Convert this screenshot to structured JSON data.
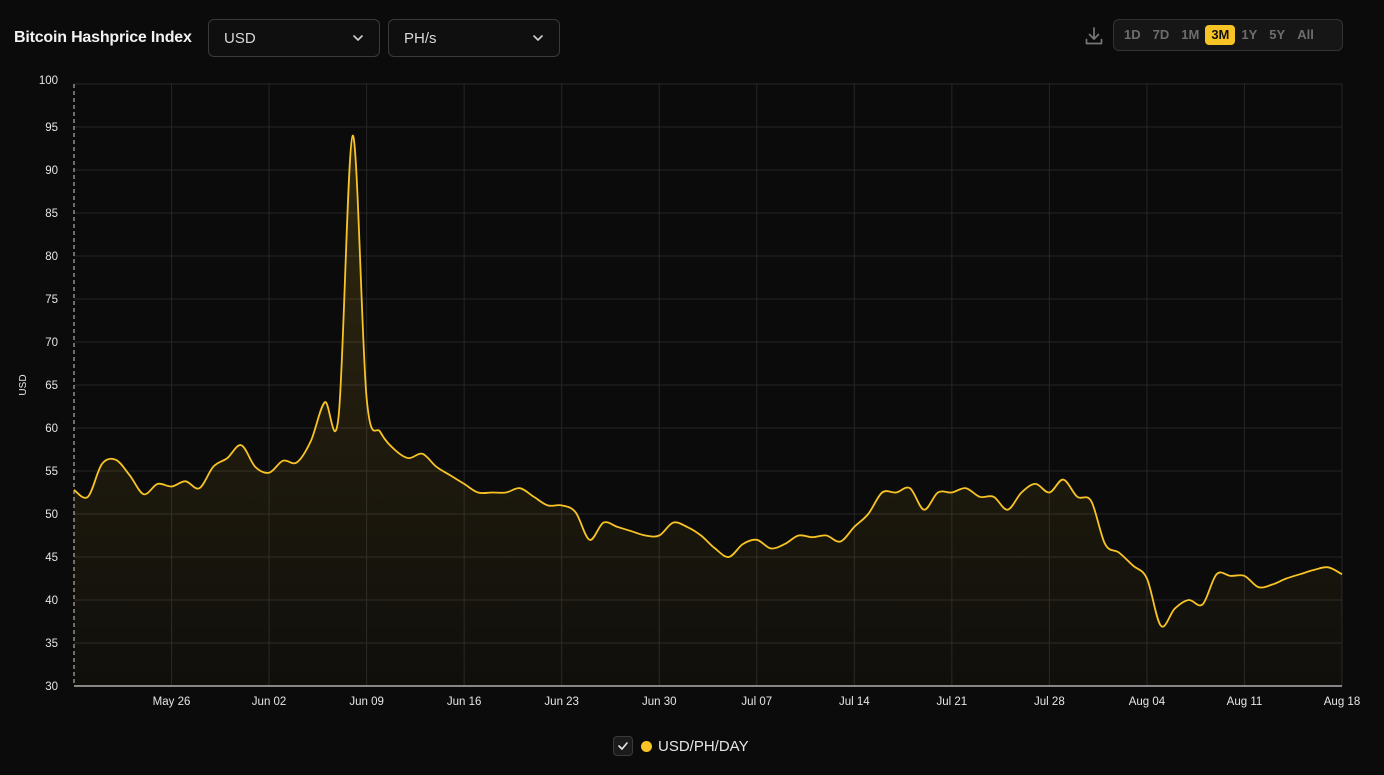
{
  "header": {
    "title": "Bitcoin Hashprice Index",
    "currency_select": {
      "value": "USD"
    },
    "unit_select": {
      "value": "PH/s"
    },
    "download_icon": "download-icon",
    "ranges": [
      {
        "label": "1D",
        "active": false
      },
      {
        "label": "7D",
        "active": false
      },
      {
        "label": "1M",
        "active": false
      },
      {
        "label": "3M",
        "active": true
      },
      {
        "label": "1Y",
        "active": false
      },
      {
        "label": "5Y",
        "active": false
      },
      {
        "label": "All",
        "active": false
      }
    ]
  },
  "legend": {
    "label": "USD/PH/DAY",
    "checked": true,
    "color": "#f7c325"
  },
  "colors": {
    "accent": "#f7c325",
    "background": "#0b0b0b",
    "grid": "#2a2a2a"
  },
  "chart_data": {
    "type": "area",
    "title": "Bitcoin Hashprice Index",
    "ylabel": "USD",
    "xlabel": "",
    "ylim": [
      30,
      100
    ],
    "yticks": [
      30,
      35,
      40,
      45,
      50,
      55,
      60,
      65,
      70,
      75,
      80,
      85,
      90,
      95,
      100
    ],
    "x_ticks": [
      "May 26",
      "Jun 02",
      "Jun 09",
      "Jun 16",
      "Jun 23",
      "Jun 30",
      "Jul 07",
      "Jul 14",
      "Jul 21",
      "Jul 28",
      "Aug 04",
      "Aug 11",
      "Aug 18"
    ],
    "x_domain": [
      "May 19",
      "Aug 18"
    ],
    "grid": true,
    "legend_position": "bottom-center",
    "series": [
      {
        "name": "USD/PH/DAY",
        "color": "#f7c325",
        "points": [
          [
            "May 19",
            52.8
          ],
          [
            "May 20",
            52.0
          ],
          [
            "May 21",
            55.8
          ],
          [
            "May 22",
            56.3
          ],
          [
            "May 23",
            54.5
          ],
          [
            "May 24",
            52.3
          ],
          [
            "May 25",
            53.5
          ],
          [
            "May 26",
            53.2
          ],
          [
            "May 27",
            53.8
          ],
          [
            "May 28",
            53.0
          ],
          [
            "May 29",
            55.5
          ],
          [
            "May 30",
            56.5
          ],
          [
            "May 31",
            58.0
          ],
          [
            "Jun 01",
            55.5
          ],
          [
            "Jun 02",
            54.8
          ],
          [
            "Jun 03",
            56.2
          ],
          [
            "Jun 04",
            56.0
          ],
          [
            "Jun 05",
            58.5
          ],
          [
            "Jun 06",
            63.0
          ],
          [
            "Jun 07",
            61.5
          ],
          [
            "Jun 08",
            94.0
          ],
          [
            "Jun 09",
            63.5
          ],
          [
            "Jun 10",
            59.5
          ],
          [
            "Jun 11",
            57.5
          ],
          [
            "Jun 12",
            56.5
          ],
          [
            "Jun 13",
            57.0
          ],
          [
            "Jun 14",
            55.5
          ],
          [
            "Jun 15",
            54.5
          ],
          [
            "Jun 16",
            53.5
          ],
          [
            "Jun 17",
            52.5
          ],
          [
            "Jun 18",
            52.5
          ],
          [
            "Jun 19",
            52.5
          ],
          [
            "Jun 20",
            53.0
          ],
          [
            "Jun 21",
            52.0
          ],
          [
            "Jun 22",
            51.0
          ],
          [
            "Jun 23",
            51.0
          ],
          [
            "Jun 24",
            50.2
          ],
          [
            "Jun 25",
            47.0
          ],
          [
            "Jun 26",
            49.0
          ],
          [
            "Jun 27",
            48.5
          ],
          [
            "Jun 28",
            48.0
          ],
          [
            "Jun 29",
            47.5
          ],
          [
            "Jun 30",
            47.5
          ],
          [
            "Jul 01",
            49.0
          ],
          [
            "Jul 02",
            48.5
          ],
          [
            "Jul 03",
            47.5
          ],
          [
            "Jul 04",
            46.0
          ],
          [
            "Jul 05",
            45.0
          ],
          [
            "Jul 06",
            46.5
          ],
          [
            "Jul 07",
            47.0
          ],
          [
            "Jul 08",
            46.0
          ],
          [
            "Jul 09",
            46.5
          ],
          [
            "Jul 10",
            47.5
          ],
          [
            "Jul 11",
            47.3
          ],
          [
            "Jul 12",
            47.5
          ],
          [
            "Jul 13",
            46.8
          ],
          [
            "Jul 14",
            48.5
          ],
          [
            "Jul 15",
            50.0
          ],
          [
            "Jul 16",
            52.5
          ],
          [
            "Jul 17",
            52.5
          ],
          [
            "Jul 18",
            53.0
          ],
          [
            "Jul 19",
            50.5
          ],
          [
            "Jul 20",
            52.5
          ],
          [
            "Jul 21",
            52.5
          ],
          [
            "Jul 22",
            53.0
          ],
          [
            "Jul 23",
            52.0
          ],
          [
            "Jul 24",
            52.0
          ],
          [
            "Jul 25",
            50.5
          ],
          [
            "Jul 26",
            52.5
          ],
          [
            "Jul 27",
            53.5
          ],
          [
            "Jul 28",
            52.5
          ],
          [
            "Jul 29",
            54.0
          ],
          [
            "Jul 30",
            52.0
          ],
          [
            "Jul 31",
            51.5
          ],
          [
            "Aug 01",
            46.5
          ],
          [
            "Aug 02",
            45.5
          ],
          [
            "Aug 03",
            44.0
          ],
          [
            "Aug 04",
            42.5
          ],
          [
            "Aug 05",
            37.0
          ],
          [
            "Aug 06",
            39.0
          ],
          [
            "Aug 07",
            40.0
          ],
          [
            "Aug 08",
            39.5
          ],
          [
            "Aug 09",
            43.0
          ],
          [
            "Aug 10",
            42.8
          ],
          [
            "Aug 11",
            42.8
          ],
          [
            "Aug 12",
            41.5
          ],
          [
            "Aug 13",
            41.8
          ],
          [
            "Aug 14",
            42.5
          ],
          [
            "Aug 15",
            43.0
          ],
          [
            "Aug 16",
            43.5
          ],
          [
            "Aug 17",
            43.8
          ],
          [
            "Aug 18",
            43.0
          ]
        ]
      }
    ]
  }
}
